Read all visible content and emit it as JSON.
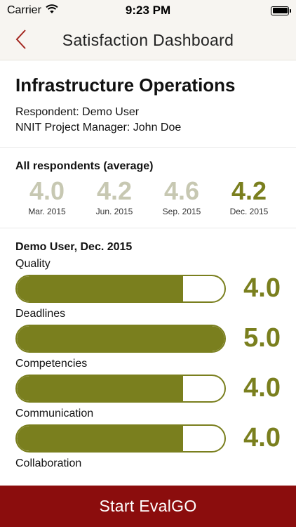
{
  "status_bar": {
    "carrier": "Carrier",
    "time": "9:23 PM",
    "icons": [
      "wifi-icon",
      "battery-icon"
    ]
  },
  "nav": {
    "title": "Satisfaction Dashboard",
    "back_icon": "chevron-left-icon"
  },
  "project": {
    "title": "Infrastructure Operations",
    "respondent": "Respondent: Demo User",
    "manager": "NNIT Project Manager: John Doe"
  },
  "averages": {
    "title": "All respondents (average)",
    "items": [
      {
        "value": "4.0",
        "label": "Mar. 2015"
      },
      {
        "value": "4.2",
        "label": "Jun. 2015"
      },
      {
        "value": "4.6",
        "label": "Sep. 2015"
      },
      {
        "value": "4.2",
        "label": "Dec. 2015"
      }
    ]
  },
  "user_scores": {
    "title": "Demo User, Dec. 2015",
    "max": 5,
    "metrics": [
      {
        "label": "Quality",
        "value": "4.0",
        "score": 4.0
      },
      {
        "label": "Deadlines",
        "value": "5.0",
        "score": 5.0
      },
      {
        "label": "Competencies",
        "value": "4.0",
        "score": 4.0
      },
      {
        "label": "Communication",
        "value": "4.0",
        "score": 4.0
      },
      {
        "label": "Collaboration"
      }
    ]
  },
  "action": {
    "start_label": "Start EvalGO"
  },
  "colors": {
    "accent": "#7a7f1e",
    "muted": "#c7c8b2",
    "button": "#8b0d0d",
    "back_chevron": "#a3261f"
  }
}
